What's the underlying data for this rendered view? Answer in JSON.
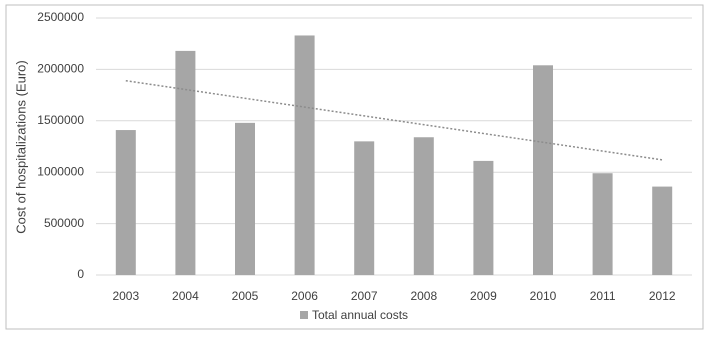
{
  "chart_data": {
    "type": "bar",
    "y_label": "Cost of hospitalizations (Euro)",
    "categories": [
      "2003",
      "2004",
      "2005",
      "2006",
      "2007",
      "2008",
      "2009",
      "2010",
      "2011",
      "2012"
    ],
    "series": [
      {
        "name": "Total annual costs",
        "color": "#a6a6a6",
        "values": [
          1410000,
          2180000,
          1480000,
          2330000,
          1300000,
          1340000,
          1110000,
          2040000,
          990000,
          860000
        ]
      }
    ],
    "trendline": {
      "values": [
        1890000,
        1120000
      ],
      "color": "#8c8c8c"
    },
    "ylim": [
      0,
      2500000
    ],
    "yticks": [
      0,
      500000,
      1000000,
      1500000,
      2000000,
      2500000
    ],
    "grid": true,
    "legend": "bottom"
  }
}
